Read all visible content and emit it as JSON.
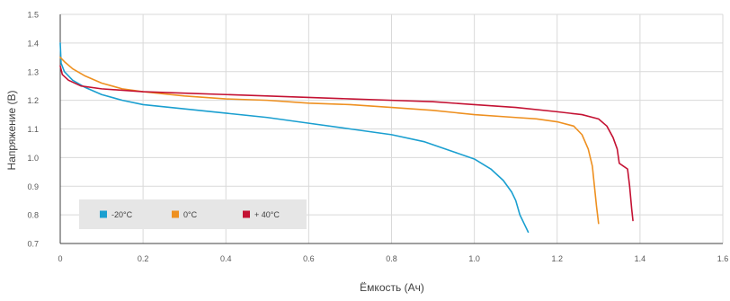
{
  "chart_data": {
    "type": "line",
    "title": "",
    "xlabel": "Ёмкость (Ач)",
    "ylabel": "Напряжение (В)",
    "xlim": [
      0,
      1.6
    ],
    "ylim": [
      0.7,
      1.5
    ],
    "x_ticks": [
      0,
      0.2,
      0.4,
      0.6,
      0.8,
      1.0,
      1.2,
      1.4,
      1.6
    ],
    "x_tick_labels": [
      "0",
      "0.2",
      "0.4",
      "0.6",
      "0.8",
      "1.0",
      "1.2",
      "1.4",
      "1.6"
    ],
    "y_ticks": [
      0.7,
      0.8,
      0.9,
      1.0,
      1.1,
      1.2,
      1.3,
      1.4,
      1.5
    ],
    "y_tick_labels": [
      "0.7",
      "0.8",
      "0.9",
      "1.0",
      "1.1",
      "1.2",
      "1.3",
      "1.4",
      "1.5"
    ],
    "grid": true,
    "legend_position": "bottom-left",
    "series": [
      {
        "name": "-20°C",
        "color": "#1a9fd0",
        "points": [
          [
            0.0,
            1.4
          ],
          [
            0.002,
            1.33
          ],
          [
            0.01,
            1.3
          ],
          [
            0.03,
            1.27
          ],
          [
            0.06,
            1.245
          ],
          [
            0.1,
            1.22
          ],
          [
            0.15,
            1.2
          ],
          [
            0.2,
            1.185
          ],
          [
            0.3,
            1.17
          ],
          [
            0.4,
            1.155
          ],
          [
            0.5,
            1.14
          ],
          [
            0.6,
            1.12
          ],
          [
            0.7,
            1.1
          ],
          [
            0.8,
            1.08
          ],
          [
            0.88,
            1.055
          ],
          [
            0.95,
            1.02
          ],
          [
            1.0,
            0.995
          ],
          [
            1.04,
            0.96
          ],
          [
            1.07,
            0.92
          ],
          [
            1.09,
            0.88
          ],
          [
            1.1,
            0.85
          ],
          [
            1.11,
            0.8
          ],
          [
            1.12,
            0.77
          ],
          [
            1.13,
            0.74
          ]
        ]
      },
      {
        "name": "0°C",
        "color": "#ee9020",
        "points": [
          [
            0.0,
            1.35
          ],
          [
            0.01,
            1.335
          ],
          [
            0.03,
            1.31
          ],
          [
            0.06,
            1.285
          ],
          [
            0.1,
            1.26
          ],
          [
            0.15,
            1.24
          ],
          [
            0.2,
            1.23
          ],
          [
            0.3,
            1.215
          ],
          [
            0.4,
            1.205
          ],
          [
            0.5,
            1.2
          ],
          [
            0.6,
            1.19
          ],
          [
            0.7,
            1.185
          ],
          [
            0.8,
            1.175
          ],
          [
            0.9,
            1.165
          ],
          [
            1.0,
            1.15
          ],
          [
            1.1,
            1.14
          ],
          [
            1.15,
            1.135
          ],
          [
            1.2,
            1.125
          ],
          [
            1.24,
            1.11
          ],
          [
            1.26,
            1.08
          ],
          [
            1.275,
            1.03
          ],
          [
            1.285,
            0.97
          ],
          [
            1.29,
            0.9
          ],
          [
            1.295,
            0.83
          ],
          [
            1.3,
            0.77
          ]
        ]
      },
      {
        "name": "+ 40°C",
        "color": "#c41233",
        "points": [
          [
            0.0,
            1.32
          ],
          [
            0.005,
            1.29
          ],
          [
            0.02,
            1.27
          ],
          [
            0.05,
            1.25
          ],
          [
            0.1,
            1.24
          ],
          [
            0.2,
            1.23
          ],
          [
            0.3,
            1.225
          ],
          [
            0.4,
            1.22
          ],
          [
            0.5,
            1.215
          ],
          [
            0.6,
            1.21
          ],
          [
            0.7,
            1.205
          ],
          [
            0.8,
            1.2
          ],
          [
            0.9,
            1.195
          ],
          [
            1.0,
            1.185
          ],
          [
            1.1,
            1.175
          ],
          [
            1.2,
            1.16
          ],
          [
            1.26,
            1.15
          ],
          [
            1.3,
            1.135
          ],
          [
            1.32,
            1.11
          ],
          [
            1.335,
            1.07
          ],
          [
            1.345,
            1.03
          ],
          [
            1.35,
            0.98
          ],
          [
            1.36,
            0.97
          ],
          [
            1.37,
            0.96
          ],
          [
            1.375,
            0.9
          ],
          [
            1.38,
            0.82
          ],
          [
            1.383,
            0.78
          ]
        ]
      }
    ]
  }
}
